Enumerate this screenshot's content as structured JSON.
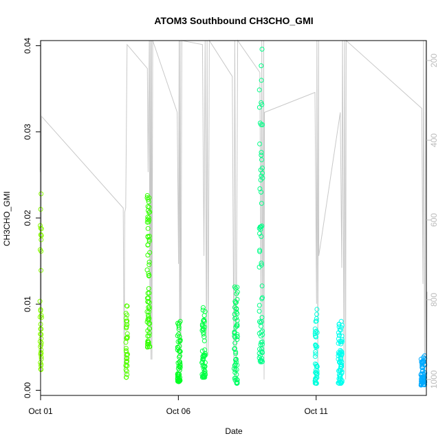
{
  "chart_data": {
    "type": "scatter",
    "title": "ATOM3 Southbound CH3CHO_GMI",
    "xlabel": "Date",
    "ylabel": "CH3CHO_GMI",
    "x_axis": {
      "type": "date",
      "range": [
        "2017-10-01T00:00",
        "2017-10-15T00:00"
      ],
      "ticks": [
        {
          "value": "2017-10-01",
          "label": "Oct 01"
        },
        {
          "value": "2017-10-06",
          "label": "Oct 06"
        },
        {
          "value": "2017-10-11",
          "label": "Oct 11"
        }
      ]
    },
    "y_axis": {
      "range": [
        -0.0006,
        0.0406
      ],
      "ticks": [
        {
          "value": 0.0,
          "label": "0.00"
        },
        {
          "value": 0.01,
          "label": "0.01"
        },
        {
          "value": 0.02,
          "label": "0.02"
        },
        {
          "value": 0.03,
          "label": "0.03"
        },
        {
          "value": 0.04,
          "label": "0.04"
        }
      ]
    },
    "y2_axis": {
      "quantity": "pressure",
      "reversed": true,
      "range": [
        1040,
        150
      ],
      "color": "#bbbbbb",
      "ticks": [
        {
          "value": 200,
          "label": "200"
        },
        {
          "value": 400,
          "label": "400"
        },
        {
          "value": 600,
          "label": "600"
        },
        {
          "value": 800,
          "label": "800"
        },
        {
          "value": 1000,
          "label": "1000"
        }
      ]
    },
    "grid": false,
    "marker": "open-circle",
    "pressure_color": "#c8c8c8",
    "flights": [
      {
        "center": "2017-10-01T00:10",
        "spread_h": 1.5,
        "y_min": 0.0024,
        "y_max": 0.0228,
        "color": "#88ff00",
        "count": 40
      },
      {
        "center": "2017-10-04T03:00",
        "spread_h": 1.5,
        "y_min": 0.0015,
        "y_max": 0.0098,
        "color": "#55ff00",
        "count": 40
      },
      {
        "center": "2017-10-04T22:00",
        "spread_h": 2.5,
        "y_min": 0.005,
        "y_max": 0.0226,
        "color": "#33ff00",
        "count": 70
      },
      {
        "center": "2017-10-06T00:30",
        "spread_h": 2.5,
        "y_min": 0.001,
        "y_max": 0.008,
        "color": "#00ff22",
        "count": 55
      },
      {
        "center": "2017-10-06T22:00",
        "spread_h": 3.0,
        "y_min": 0.0015,
        "y_max": 0.0096,
        "color": "#00ff44",
        "count": 60
      },
      {
        "center": "2017-10-08T02:00",
        "spread_h": 3.0,
        "y_min": 0.0008,
        "y_max": 0.012,
        "color": "#00ff66",
        "count": 60
      },
      {
        "center": "2017-10-09T00:00",
        "spread_h": 3.0,
        "y_min": 0.0033,
        "y_max": 0.0396,
        "color": "#00ff88",
        "count": 70
      },
      {
        "center": "2017-10-11T00:00",
        "spread_h": 2.0,
        "y_min": 0.0008,
        "y_max": 0.0094,
        "color": "#00ffdd",
        "count": 45
      },
      {
        "center": "2017-10-11T21:00",
        "spread_h": 3.5,
        "y_min": 0.0008,
        "y_max": 0.008,
        "color": "#00ffee",
        "count": 70
      },
      {
        "center": "2017-10-14T21:00",
        "spread_h": 3.5,
        "y_min": 0.0006,
        "y_max": 0.004,
        "color": "#00aaff",
        "count": 60
      }
    ],
    "pressure_track": [
      [
        "2017-09-30T23:40",
        480
      ],
      [
        "2017-10-01T00:00",
        150
      ],
      [
        "2017-10-01T00:10",
        760
      ],
      [
        "2017-10-01T00:20",
        150
      ],
      [
        "2017-10-01T00:40",
        980
      ],
      [
        "2017-10-01T00:50",
        340
      ],
      [
        "2017-10-04T00:00",
        570
      ],
      [
        "2017-10-04T00:50",
        990
      ],
      [
        "2017-10-04T01:20",
        580
      ],
      [
        "2017-10-04T02:10",
        570
      ],
      [
        "2017-10-04T03:20",
        160
      ],
      [
        "2017-10-04T21:00",
        220
      ],
      [
        "2017-10-04T21:40",
        480
      ],
      [
        "2017-10-04T22:40",
        150
      ],
      [
        "2017-10-04T23:10",
        900
      ],
      [
        "2017-10-04T23:40",
        150
      ],
      [
        "2017-10-05T00:10",
        950
      ],
      [
        "2017-10-05T00:40",
        150
      ],
      [
        "2017-10-05T01:00",
        950
      ],
      [
        "2017-10-05T01:40",
        150
      ],
      [
        "2017-10-05T23:00",
        330
      ],
      [
        "2017-10-06T00:10",
        710
      ],
      [
        "2017-10-06T00:40",
        150
      ],
      [
        "2017-10-06T01:10",
        980
      ],
      [
        "2017-10-06T01:40",
        150
      ],
      [
        "2017-10-06T02:10",
        1010
      ],
      [
        "2017-10-06T03:00",
        150
      ],
      [
        "2017-10-06T21:00",
        160
      ],
      [
        "2017-10-06T22:20",
        690
      ],
      [
        "2017-10-06T23:20",
        150
      ],
      [
        "2017-10-07T00:30",
        940
      ],
      [
        "2017-10-07T01:00",
        150
      ],
      [
        "2017-10-07T02:00",
        940
      ],
      [
        "2017-10-07T03:00",
        150
      ],
      [
        "2017-10-07T23:00",
        240
      ],
      [
        "2017-10-08T00:20",
        980
      ],
      [
        "2017-10-08T01:10",
        150
      ],
      [
        "2017-10-08T02:20",
        1000
      ],
      [
        "2017-10-08T03:40",
        150
      ],
      [
        "2017-10-08T23:00",
        230
      ],
      [
        "2017-10-09T00:00",
        860
      ],
      [
        "2017-10-09T00:40",
        150
      ],
      [
        "2017-10-09T01:30",
        940
      ],
      [
        "2017-10-09T02:20",
        150
      ],
      [
        "2017-10-09T02:40",
        1000
      ],
      [
        "2017-10-09T03:00",
        330
      ],
      [
        "2017-10-10T23:00",
        280
      ],
      [
        "2017-10-11T00:20",
        810
      ],
      [
        "2017-10-11T00:40",
        150
      ],
      [
        "2017-10-11T01:30",
        960
      ],
      [
        "2017-10-11T02:10",
        150
      ],
      [
        "2017-10-11T02:20",
        690
      ],
      [
        "2017-10-11T21:00",
        330
      ],
      [
        "2017-10-11T22:20",
        720
      ],
      [
        "2017-10-11T23:00",
        150
      ],
      [
        "2017-10-12T00:20",
        980
      ],
      [
        "2017-10-12T00:50",
        150
      ],
      [
        "2017-10-12T01:40",
        1000
      ],
      [
        "2017-10-12T02:10",
        150
      ],
      [
        "2017-10-14T20:00",
        320
      ],
      [
        "2017-10-14T21:00",
        760
      ],
      [
        "2017-10-14T21:30",
        150
      ],
      [
        "2017-10-14T22:30",
        990
      ],
      [
        "2017-10-14T23:40",
        150
      ],
      [
        "2017-10-15T00:10",
        1000
      ],
      [
        "2017-10-15T00:40",
        780
      ]
    ]
  }
}
